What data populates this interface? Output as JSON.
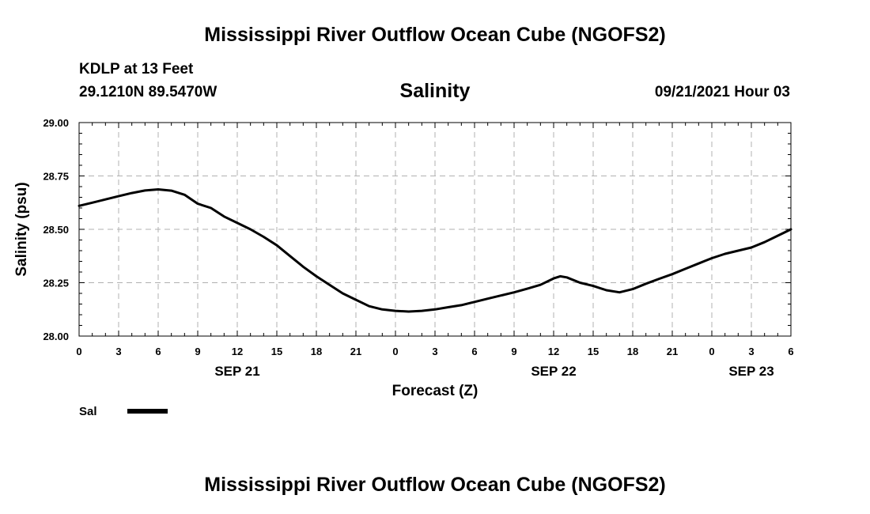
{
  "header": {
    "title": "Mississippi River Outflow Ocean Cube (NGOFS2)",
    "station": "KDLP at 13 Feet",
    "coordinates": "29.1210N  89.5470W",
    "variable": "Salinity",
    "timestamp": "09/21/2021 Hour 03"
  },
  "footer": {
    "title": "Mississippi River Outflow Ocean Cube (NGOFS2)"
  },
  "chart_data": {
    "type": "line",
    "xlabel": "Forecast (Z)",
    "ylabel": "Salinity (psu)",
    "xlim": [
      0,
      54
    ],
    "ylim": [
      28.0,
      29.0
    ],
    "yticks": [
      "28.00",
      "28.25",
      "28.50",
      "28.75",
      "29.00"
    ],
    "xticks": [
      "0",
      "3",
      "6",
      "9",
      "12",
      "15",
      "18",
      "21",
      "0",
      "3",
      "6",
      "9",
      "12",
      "15",
      "18",
      "21",
      "0",
      "3",
      "6"
    ],
    "date_labels": [
      {
        "label": "SEP 21",
        "hour": 12
      },
      {
        "label": "SEP 22",
        "hour": 36
      },
      {
        "label": "SEP 23",
        "hour": 51
      }
    ],
    "grid": true,
    "line_color": "#000000",
    "series": [
      {
        "name": "Sal",
        "x": [
          0,
          1,
          2,
          3,
          4,
          5,
          6,
          7,
          8,
          9,
          10,
          11,
          12,
          13,
          14,
          15,
          16,
          17,
          18,
          19,
          20,
          21,
          22,
          23,
          24,
          25,
          26,
          27,
          28,
          29,
          30,
          31,
          32,
          33,
          34,
          35,
          36,
          36.5,
          37,
          38,
          39,
          40,
          41,
          42,
          43,
          44,
          45,
          46,
          47,
          48,
          49,
          50,
          51,
          52,
          53,
          54
        ],
        "y": [
          28.61,
          28.625,
          28.64,
          28.655,
          28.67,
          28.682,
          28.687,
          28.681,
          28.662,
          28.62,
          28.6,
          28.56,
          28.53,
          28.5,
          28.465,
          28.425,
          28.375,
          28.325,
          28.28,
          28.24,
          28.2,
          28.17,
          28.14,
          28.125,
          28.118,
          28.115,
          28.118,
          28.125,
          28.135,
          28.145,
          28.16,
          28.175,
          28.19,
          28.205,
          28.222,
          28.24,
          28.27,
          28.28,
          28.275,
          28.25,
          28.235,
          28.215,
          28.205,
          28.22,
          28.245,
          28.268,
          28.29,
          28.315,
          28.34,
          28.365,
          28.385,
          28.4,
          28.415,
          28.44,
          28.47,
          28.5
        ]
      }
    ],
    "legend": {
      "position": "bottom-left",
      "label": "Sal"
    }
  }
}
